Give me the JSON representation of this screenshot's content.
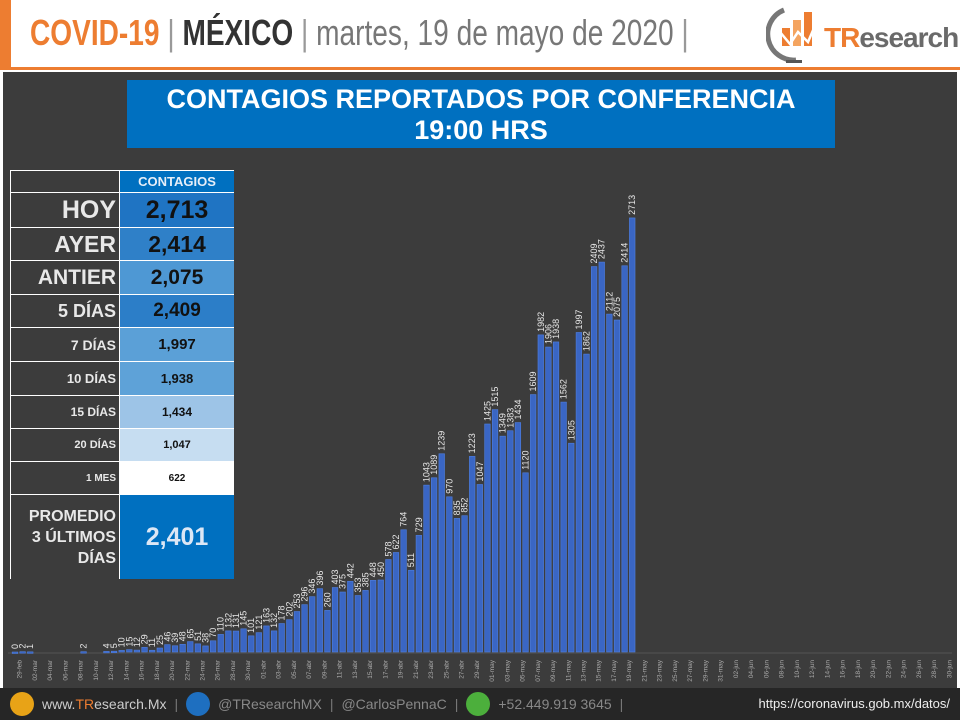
{
  "header": {
    "title_main": "COVID-19",
    "separator": "|",
    "country": "MÉXICO",
    "date": "martes, 19 de mayo de 2020",
    "logo_text_tr": "TR",
    "logo_text_rest": "esearch",
    "accent_color": "#ed7d31"
  },
  "panel": {
    "title_line1": "CONTAGIOS REPORTADOS POR CONFERENCIA",
    "title_line2": "19:00 HRS"
  },
  "kpi_table": {
    "column_header": "CONTAGIOS",
    "rows": [
      {
        "label": "HOY",
        "value": "2,713",
        "color": "#1f74c3"
      },
      {
        "label": "AYER",
        "value": "2,414",
        "color": "#2f80c8"
      },
      {
        "label": "ANTIER",
        "value": "2,075",
        "color": "#4e98d4"
      },
      {
        "label": "5 DÍAS",
        "value": "2,409",
        "color": "#2c7ec8"
      },
      {
        "label": "7 DÍAS",
        "value": "1,997",
        "color": "#5ba0d7"
      },
      {
        "label": "10 DÍAS",
        "value": "1,938",
        "color": "#5ea2d8"
      },
      {
        "label": "15 DÍAS",
        "value": "1,434",
        "color": "#9dc4e7"
      },
      {
        "label": "20 DÍAS",
        "value": "1,047",
        "color": "#c6ddf1"
      },
      {
        "label": "1 MES",
        "value": "622",
        "color": "#ffffff"
      }
    ],
    "average": {
      "label_line1": "PROMEDIO",
      "label_line2": "3 ÚLTIMOS",
      "label_line3": "DÍAS",
      "value": "2,401",
      "color": "#0070c0"
    }
  },
  "chart_data": {
    "type": "bar",
    "title": "CONTAGIOS REPORTADOS POR CONFERENCIA 19:00 HRS",
    "bar_color": "#3a66c4",
    "ylim": [
      0,
      3000
    ],
    "grid": false,
    "data_labels": true,
    "x_start": "28-feb",
    "x_end": "30-jun",
    "tick_labels": [
      "29-feb",
      "02-mar",
      "04-mar",
      "06-mar",
      "08-mar",
      "10-mar",
      "12-mar",
      "14-mar",
      "16-mar",
      "18-mar",
      "20-mar",
      "22-mar",
      "24-mar",
      "26-mar",
      "28-mar",
      "30-mar",
      "01-abr",
      "03-abr",
      "05-abr",
      "07-abr",
      "09-abr",
      "11-abr",
      "13-abr",
      "15-abr",
      "17-abr",
      "19-abr",
      "21-abr",
      "23-abr",
      "25-abr",
      "27-abr",
      "29-abr",
      "01-may",
      "03-may",
      "05-may",
      "07-may",
      "09-may",
      "11-may",
      "13-may",
      "15-may",
      "17-may",
      "19-may",
      "21-may",
      "23-may",
      "25-may",
      "27-may",
      "29-may",
      "31-may",
      "02-jun",
      "04-jun",
      "06-jun",
      "08-jun",
      "10-jun",
      "12-jun",
      "14-jun",
      "16-jun",
      "18-jun",
      "20-jun",
      "22-jun",
      "24-jun",
      "26-jun",
      "28-jun",
      "30-jun"
    ],
    "values": [
      0,
      2,
      1,
      null,
      null,
      null,
      null,
      null,
      null,
      2,
      null,
      null,
      4,
      5,
      10,
      15,
      12,
      29,
      11,
      25,
      46,
      39,
      48,
      65,
      51,
      38,
      70,
      110,
      132,
      131,
      145,
      101,
      121,
      163,
      132,
      178,
      202,
      253,
      296,
      346,
      396,
      260,
      403,
      375,
      442,
      353,
      385,
      448,
      450,
      578,
      622,
      764,
      511,
      729,
      1043,
      1089,
      1239,
      970,
      835,
      852,
      1223,
      1047,
      1425,
      1515,
      1349,
      1383,
      1434,
      1120,
      1609,
      1982,
      1906,
      1938,
      1562,
      1305,
      1997,
      1862,
      2409,
      2437,
      2112,
      2075,
      2414,
      2713
    ]
  },
  "footer": {
    "website_prefix": "www.",
    "website_tr": "TR",
    "website_rest": "esearch.Mx",
    "twitter": "@TResearchMX",
    "twitter2": "@CarlosPennaC",
    "phone": "+52.449.919 3645",
    "source_url": "https://coronavirus.gob.mx/datos/",
    "sep": "|"
  }
}
